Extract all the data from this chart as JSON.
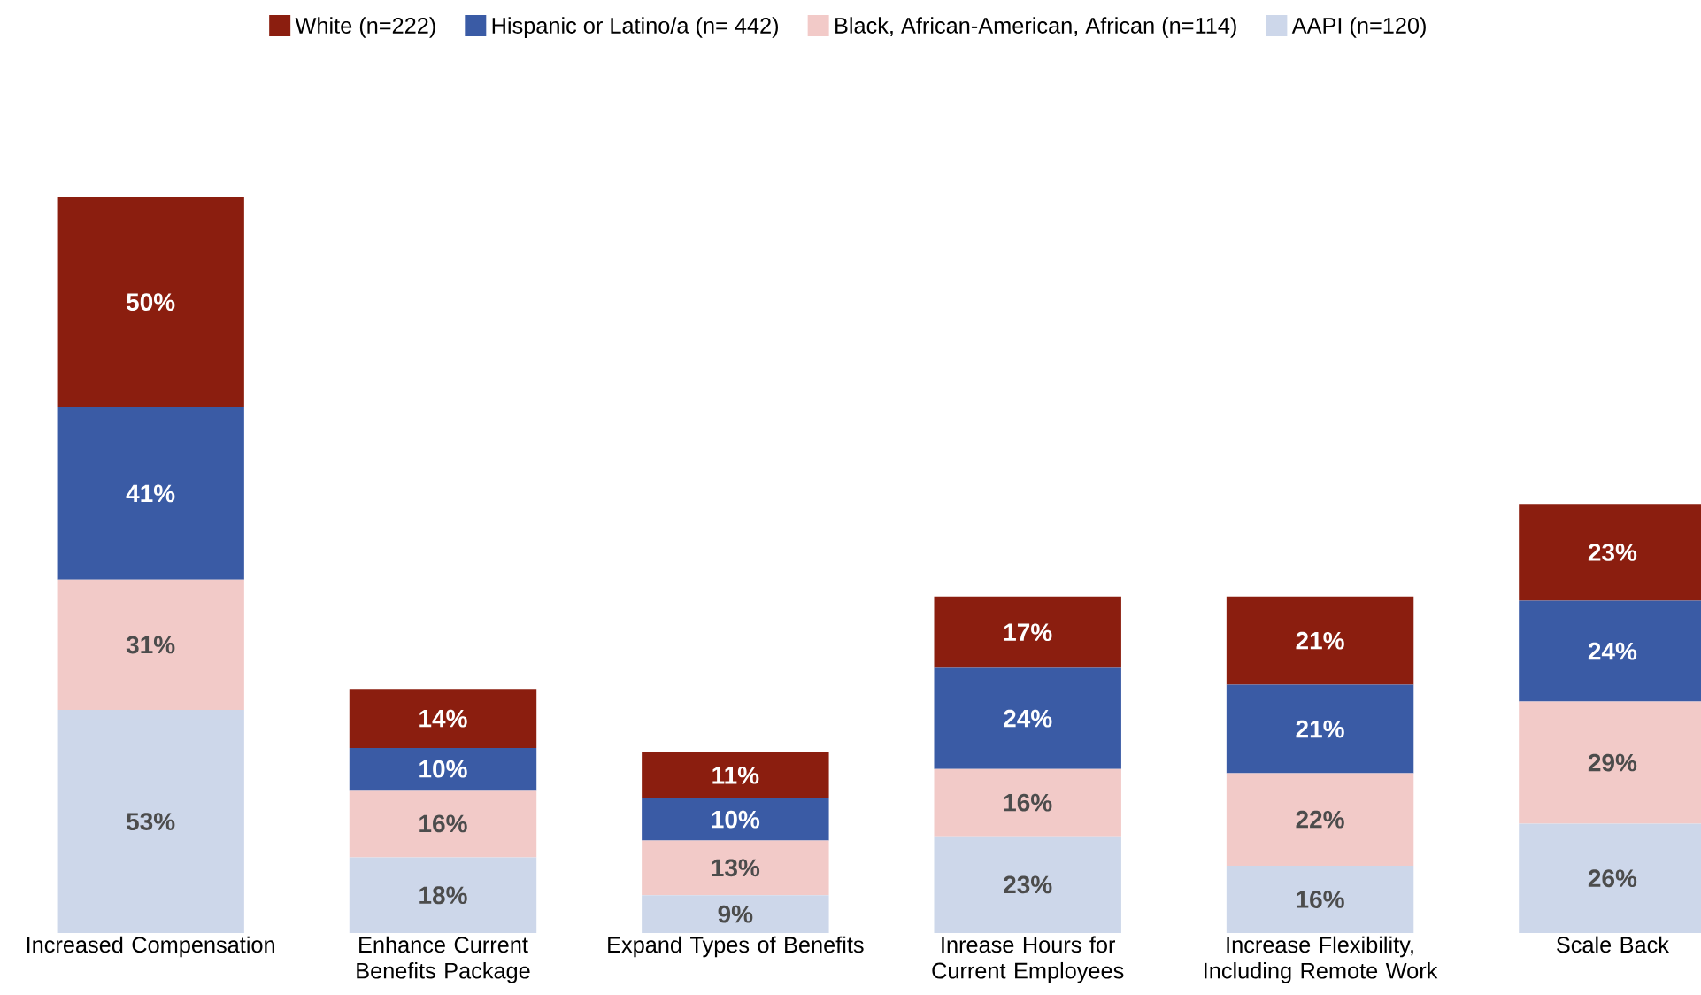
{
  "chart_data": {
    "type": "bar",
    "stacked": true,
    "legend": "top",
    "categories": [
      "Increased Compensation",
      "Enhance Current Benefits Package",
      "Expand Types of Benefits",
      "Inrease Hours for Current Employees",
      "Increase Flexibility, Including Remote Work",
      "Scale Back"
    ],
    "series": [
      {
        "name": "AAPI (n=120)",
        "color": "#cdd7ea",
        "values": [
          53,
          18,
          9,
          23,
          16,
          26
        ],
        "value_labels": [
          "53%",
          "18%",
          "9%",
          "23%",
          "16%",
          "26%"
        ]
      },
      {
        "name": "Black, African-American, African (n=114)",
        "color": "#f2cac8",
        "values": [
          31,
          16,
          13,
          16,
          22,
          29
        ],
        "value_labels": [
          "31%",
          "16%",
          "13%",
          "16%",
          "22%",
          "29%"
        ]
      },
      {
        "name": "Hispanic or Latino/a (n= 442)",
        "color": "#3a5ba5",
        "values": [
          41,
          10,
          10,
          24,
          21,
          24
        ],
        "value_labels": [
          "41%",
          "10%",
          "10%",
          "24%",
          "21%",
          "24%"
        ]
      },
      {
        "name": "White (n=222)",
        "color": "#8b1e0f",
        "values": [
          50,
          14,
          11,
          17,
          21,
          23
        ],
        "value_labels": [
          "50%",
          "14%",
          "11%",
          "17%",
          "21%",
          "23%"
        ]
      }
    ]
  }
}
